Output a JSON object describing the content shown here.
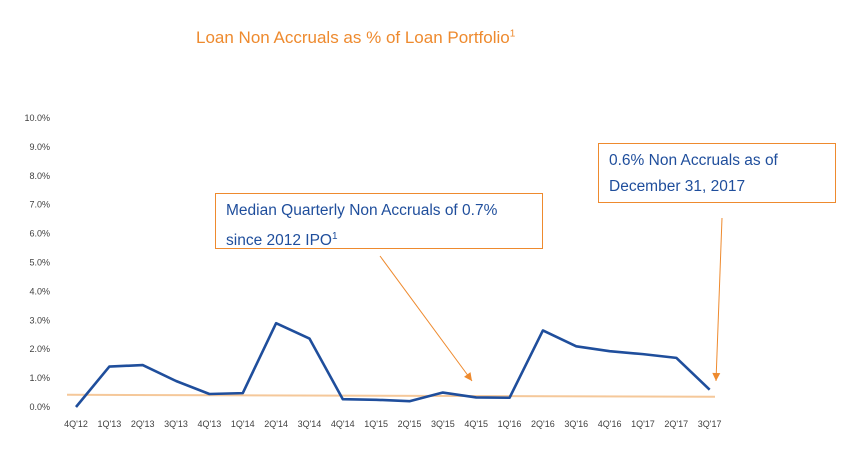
{
  "title": {
    "text": "Loan Non Accruals as % of Loan Portfolio",
    "footnote": "1"
  },
  "callouts": {
    "median": {
      "line1": "Median Quarterly Non Accruals of 0.7%",
      "line2": "since 2012 IPO",
      "footnote": "1"
    },
    "current": {
      "line1": "0.6% Non Accruals as of",
      "line2": "December 31, 2017"
    }
  },
  "colors": {
    "series": "#1f4e9c",
    "median_line": "#f5c89a",
    "accent": "#ee8a2e",
    "tick_text": "#404040"
  },
  "chart_data": {
    "type": "line",
    "title": "Loan Non Accruals as % of Loan Portfolio",
    "xlabel": "",
    "ylabel": "",
    "categories": [
      "4Q'12",
      "1Q'13",
      "2Q'13",
      "3Q'13",
      "4Q'13",
      "1Q'14",
      "2Q'14",
      "3Q'14",
      "4Q'14",
      "1Q'15",
      "2Q'15",
      "3Q'15",
      "4Q'15",
      "1Q'16",
      "2Q'16",
      "3Q'16",
      "4Q'16",
      "1Q'17",
      "2Q'17",
      "3Q'17"
    ],
    "series": [
      {
        "values": [
          0.0,
          1.4,
          1.45,
          0.9,
          0.45,
          0.48,
          2.9,
          2.37,
          0.27,
          0.25,
          0.2,
          0.5,
          0.33,
          0.32,
          2.65,
          2.1,
          1.93,
          1.83,
          1.7,
          0.6
        ]
      }
    ],
    "reference_line": {
      "value": 0.7
    },
    "ylim": [
      0,
      10
    ],
    "yticks": [
      "0.0%",
      "1.0%",
      "2.0%",
      "3.0%",
      "4.0%",
      "5.0%",
      "6.0%",
      "7.0%",
      "8.0%",
      "9.0%",
      "10.0%"
    ],
    "grid": false,
    "legend": "none"
  }
}
